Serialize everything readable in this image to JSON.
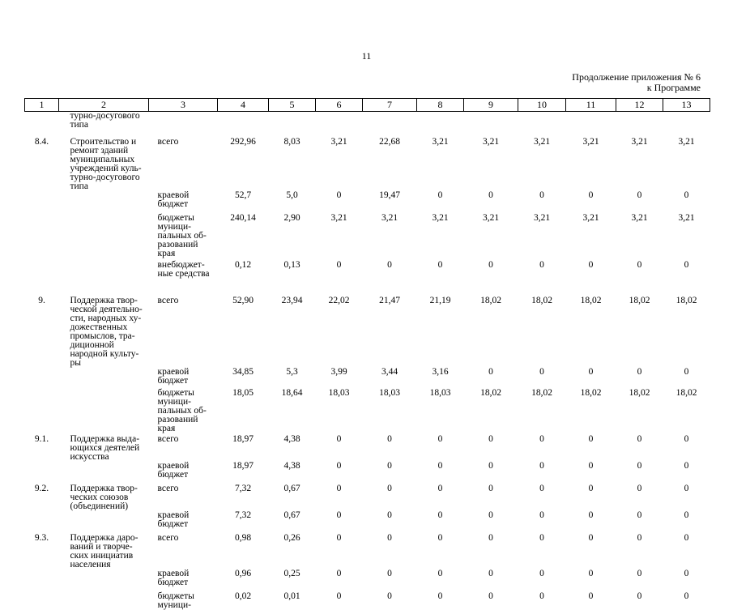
{
  "page_number": "11",
  "continuation": {
    "line1": "Продолжение приложения № 6",
    "line2": "к Программе"
  },
  "header_cols": [
    "1",
    "2",
    "3",
    "4",
    "5",
    "6",
    "7",
    "8",
    "9",
    "10",
    "11",
    "12",
    "13"
  ],
  "rows": [
    {
      "pad": 0,
      "idx": "",
      "name": "турно-досугового\nтипа",
      "src": "",
      "v": [
        "",
        "",
        "",
        "",
        "",
        "",
        "",
        "",
        "",
        ""
      ]
    },
    {
      "pad": 10,
      "idx": "8.4.",
      "name": "Строительство и\nремонт зданий\nмуниципальных\nучреждений куль-\nтурно-досугового\nтипа",
      "src": "всего",
      "v": [
        "292,96",
        "8,03",
        "3,21",
        "22,68",
        "3,21",
        "3,21",
        "3,21",
        "3,21",
        "3,21",
        "3,21"
      ]
    },
    {
      "pad": 0,
      "idx": "",
      "name": "",
      "src": "краевой\nбюджет",
      "v": [
        "52,7",
        "5,0",
        "0",
        "19,47",
        "0",
        "0",
        "0",
        "0",
        "0",
        "0"
      ]
    },
    {
      "pad": 6,
      "idx": "",
      "name": "",
      "src": "бюджеты\nмуници-\nпальных об-\nразований\nкрая",
      "v": [
        "240,14",
        "2,90",
        "3,21",
        "3,21",
        "3,21",
        "3,21",
        "3,21",
        "3,21",
        "3,21",
        "3,21"
      ]
    },
    {
      "pad": 3,
      "idx": "",
      "name": "",
      "src": "внебюджет-\nные средства",
      "v": [
        "0,12",
        "0,13",
        "0",
        "0",
        "0",
        "0",
        "0",
        "0",
        "0",
        "0"
      ]
    },
    {
      "pad": 22,
      "idx": "9.",
      "name": "Поддержка твор-\nческой деятельно-\nсти, народных ху-\nдожественных\nпромыслов, тра-\nдиционной\nнародной культу-\nры",
      "src": "всего",
      "v": [
        "52,90",
        "23,94",
        "22,02",
        "21,47",
        "21,19",
        "18,02",
        "18,02",
        "18,02",
        "18,02",
        "18,02"
      ]
    },
    {
      "pad": 0,
      "idx": "",
      "name": "",
      "src": "краевой\nбюджет",
      "v": [
        "34,85",
        "5,3",
        "3,99",
        "3,44",
        "3,16",
        "0",
        "0",
        "0",
        "0",
        "0"
      ]
    },
    {
      "pad": 4,
      "idx": "",
      "name": "",
      "src": "бюджеты\nмуници-\nпальных об-\nразований\nкрая",
      "v": [
        "18,05",
        "18,64",
        "18,03",
        "18,03",
        "18,03",
        "18,02",
        "18,02",
        "18,02",
        "18,02",
        "18,02"
      ]
    },
    {
      "pad": 2,
      "idx": "9.1.",
      "name": "Поддержка выда-\nющихся деятелей\nискусства",
      "src": "всего",
      "v": [
        "18,97",
        "4,38",
        "0",
        "0",
        "0",
        "0",
        "0",
        "0",
        "0",
        "0"
      ]
    },
    {
      "pad": 0,
      "idx": "",
      "name": "",
      "src": "краевой\nбюджет",
      "v": [
        "18,97",
        "4,38",
        "0",
        "0",
        "0",
        "0",
        "0",
        "0",
        "0",
        "0"
      ]
    },
    {
      "pad": 6,
      "idx": "9.2.",
      "name": "Поддержка твор-\nческих союзов\n(объединений)",
      "src": "всего",
      "v": [
        "7,32",
        "0,67",
        "0",
        "0",
        "0",
        "0",
        "0",
        "0",
        "0",
        "0"
      ]
    },
    {
      "pad": 0,
      "idx": "",
      "name": "",
      "src": "краевой\nбюджет",
      "v": [
        "7,32",
        "0,67",
        "0",
        "0",
        "0",
        "0",
        "0",
        "0",
        "0",
        "0"
      ]
    },
    {
      "pad": 6,
      "idx": "9.3.",
      "name": "Поддержка даро-\nваний и творче-\nских инициатив\nнаселения",
      "src": "всего",
      "v": [
        "0,98",
        "0,26",
        "0",
        "0",
        "0",
        "0",
        "0",
        "0",
        "0",
        "0"
      ]
    },
    {
      "pad": 0,
      "idx": "",
      "name": "",
      "src": "краевой\nбюджет",
      "v": [
        "0,96",
        "0,25",
        "0",
        "0",
        "0",
        "0",
        "0",
        "0",
        "0",
        "0"
      ]
    },
    {
      "pad": 6,
      "idx": "",
      "name": "",
      "src": "бюджеты\nмуници-",
      "v": [
        "0,02",
        "0,01",
        "0",
        "0",
        "0",
        "0",
        "0",
        "0",
        "0",
        "0"
      ]
    }
  ]
}
